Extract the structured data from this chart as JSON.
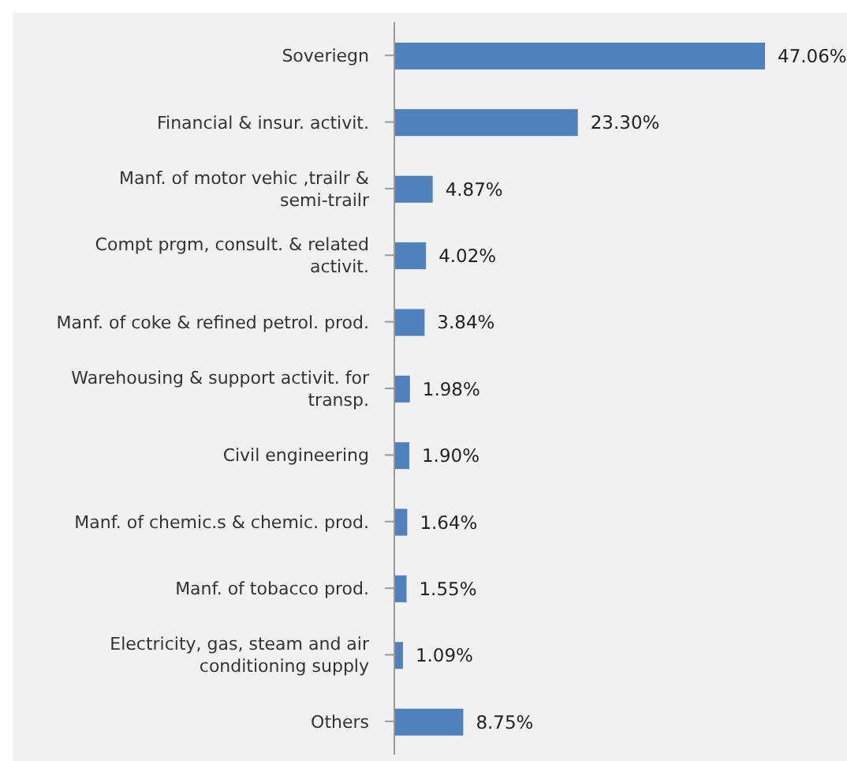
{
  "chart_data": {
    "type": "bar",
    "orientation": "horizontal",
    "categories": [
      "Soveriegn",
      "Financial & insur. activit.",
      "Manf. of motor vehic ,trailr & semi-trailr",
      "Compt prgm, consult. & related activit.",
      "Manf. of coke & refined petrol. prod.",
      "Warehousing & support activit. for transp.",
      "Civil engineering",
      "Manf. of chemic.s & chemic. prod.",
      "Manf. of tobacco prod.",
      "Electricity, gas, steam and air conditioning supply",
      "Others"
    ],
    "values": [
      47.06,
      23.3,
      4.87,
      4.02,
      3.84,
      1.98,
      1.9,
      1.64,
      1.55,
      1.09,
      8.75
    ],
    "value_labels": [
      "47.06%",
      "23.30%",
      "4.87%",
      "4.02%",
      "3.84%",
      "1.98%",
      "1.90%",
      "1.64%",
      "1.55%",
      "1.09%",
      "8.75%"
    ],
    "color": "#4f81bd",
    "grid": false,
    "legend": false
  }
}
